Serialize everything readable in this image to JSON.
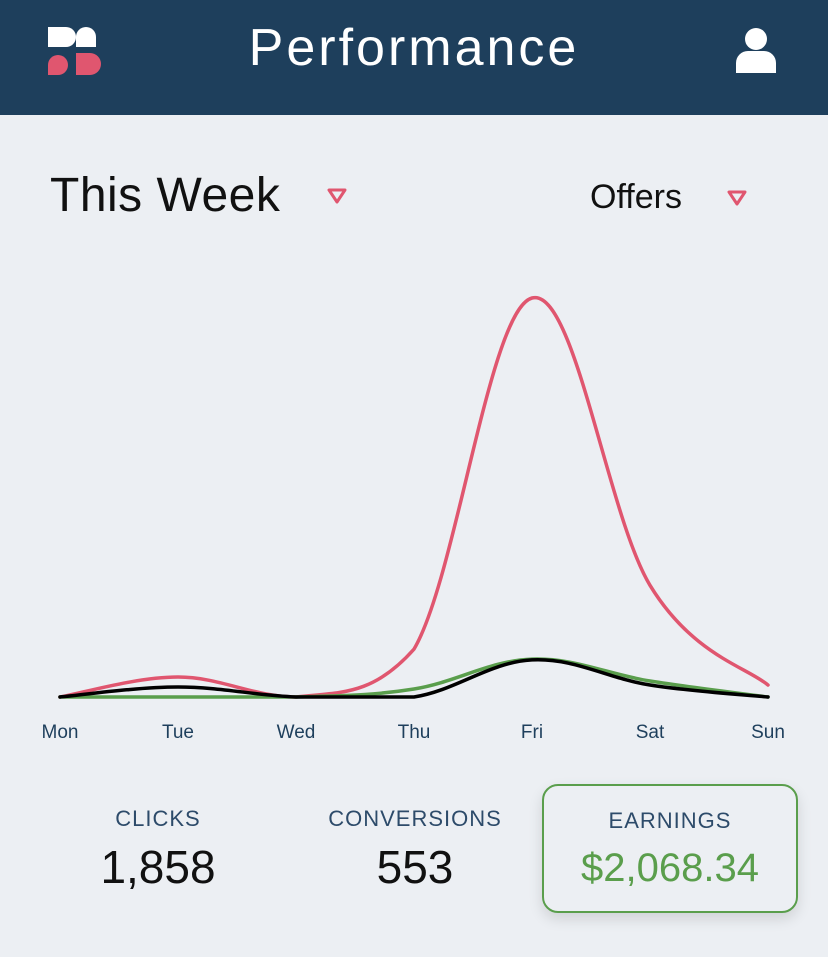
{
  "header": {
    "title": "Performance",
    "logo_icon": "app-logo-icon",
    "user_icon": "user-icon",
    "background": "#1e3f5c"
  },
  "filters": {
    "period": "This Week",
    "category": "Offers",
    "caret_color": "#e0566f"
  },
  "chart_data": {
    "type": "line",
    "categories": [
      "Mon",
      "Tue",
      "Wed",
      "Thu",
      "Fri",
      "Sat",
      "Sun"
    ],
    "series": [
      {
        "color": "#e0566f",
        "values": [
          0,
          5,
          0,
          12,
          100,
          28,
          3
        ]
      },
      {
        "color": "#5a9e4c",
        "values": [
          0,
          0,
          0,
          2,
          9.5,
          4,
          0
        ]
      },
      {
        "color": "#000000",
        "values": [
          0,
          2.5,
          0,
          0,
          9.3,
          3,
          0
        ]
      }
    ],
    "ylim": [
      0,
      100
    ],
    "grid": false,
    "legend": "none"
  },
  "stats": {
    "clicks_label": "CLICKS",
    "clicks_value": "1,858",
    "conversions_label": "CONVERSIONS",
    "conversions_value": "553",
    "earnings_label": "EARNINGS",
    "earnings_value": "$2,068.34",
    "earnings_color": "#5a9e4c"
  }
}
